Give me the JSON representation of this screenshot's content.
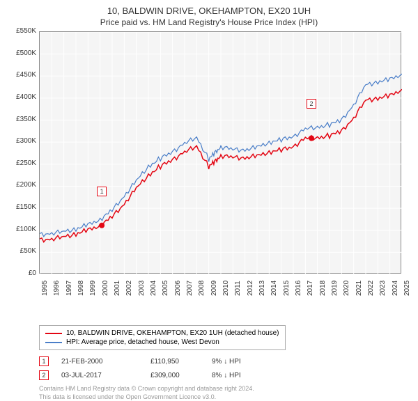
{
  "title": "10, BALDWIN DRIVE, OKEHAMPTON, EX20 1UH",
  "subtitle": "Price paid vs. HM Land Registry's House Price Index (HPI)",
  "chart": {
    "type": "line",
    "background_color": "#f5f5f5",
    "grid_color": "#ffffff",
    "border_color": "#888888",
    "ylabel_prefix": "£",
    "ylabel_suffix": "K",
    "ylim": [
      0,
      550
    ],
    "ytick_step": 50,
    "yticks": [
      0,
      50,
      100,
      150,
      200,
      250,
      300,
      350,
      400,
      450,
      500,
      550
    ],
    "xlim": [
      1995,
      2025
    ],
    "xticks": [
      1995,
      1996,
      1997,
      1998,
      1999,
      2000,
      2001,
      2002,
      2003,
      2004,
      2005,
      2006,
      2007,
      2008,
      2009,
      2010,
      2011,
      2012,
      2013,
      2014,
      2015,
      2016,
      2017,
      2018,
      2019,
      2020,
      2021,
      2022,
      2023,
      2024,
      2025
    ],
    "series": [
      {
        "name": "10, BALDWIN DRIVE, OKEHAMPTON, EX20 1UH (detached house)",
        "color": "#e30613",
        "line_width": 1.5,
        "x": [
          1995,
          1996,
          1997,
          1998,
          1999,
          2000,
          2001,
          2002,
          2003,
          2004,
          2005,
          2006,
          2007,
          2008,
          2009,
          2009.5,
          2010,
          2011,
          2012,
          2013,
          2014,
          2015,
          2016,
          2017,
          2018,
          2019,
          2020,
          2021,
          2022,
          2023,
          2024,
          2025
        ],
        "y": [
          78,
          80,
          85,
          92,
          100,
          111,
          130,
          160,
          195,
          225,
          245,
          260,
          278,
          290,
          245,
          255,
          270,
          265,
          265,
          268,
          278,
          282,
          290,
          309,
          310,
          315,
          325,
          355,
          395,
          400,
          405,
          420
        ]
      },
      {
        "name": "HPI: Average price, detached house, West Devon",
        "color": "#4a7ec8",
        "line_width": 1.2,
        "x": [
          1995,
          1996,
          1997,
          1998,
          1999,
          2000,
          2001,
          2002,
          2003,
          2004,
          2005,
          2006,
          2007,
          2008,
          2009,
          2009.5,
          2010,
          2011,
          2012,
          2013,
          2014,
          2015,
          2016,
          2017,
          2018,
          2019,
          2020,
          2021,
          2022,
          2023,
          2024,
          2025
        ],
        "y": [
          90,
          93,
          97,
          103,
          112,
          125,
          145,
          178,
          212,
          245,
          263,
          278,
          298,
          310,
          262,
          275,
          290,
          283,
          283,
          288,
          300,
          305,
          313,
          330,
          334,
          340,
          350,
          385,
          430,
          437,
          442,
          455
        ]
      }
    ],
    "sale_markers": [
      {
        "index": "1",
        "x": 2000.14,
        "y": 111,
        "color": "#e30613"
      },
      {
        "index": "2",
        "x": 2017.5,
        "y": 309,
        "color": "#e30613"
      }
    ]
  },
  "legend": {
    "items": [
      {
        "label": "10, BALDWIN DRIVE, OKEHAMPTON, EX20 1UH (detached house)",
        "color": "#e30613"
      },
      {
        "label": "HPI: Average price, detached house, West Devon",
        "color": "#4a7ec8"
      }
    ]
  },
  "sales": [
    {
      "index": "1",
      "date": "21-FEB-2000",
      "price": "£110,950",
      "diff": "9% ↓ HPI",
      "color": "#e30613"
    },
    {
      "index": "2",
      "date": "03-JUL-2017",
      "price": "£309,000",
      "diff": "8% ↓ HPI",
      "color": "#e30613"
    }
  ],
  "footnote": {
    "line1": "Contains HM Land Registry data © Crown copyright and database right 2024.",
    "line2": "This data is licensed under the Open Government Licence v3.0."
  }
}
